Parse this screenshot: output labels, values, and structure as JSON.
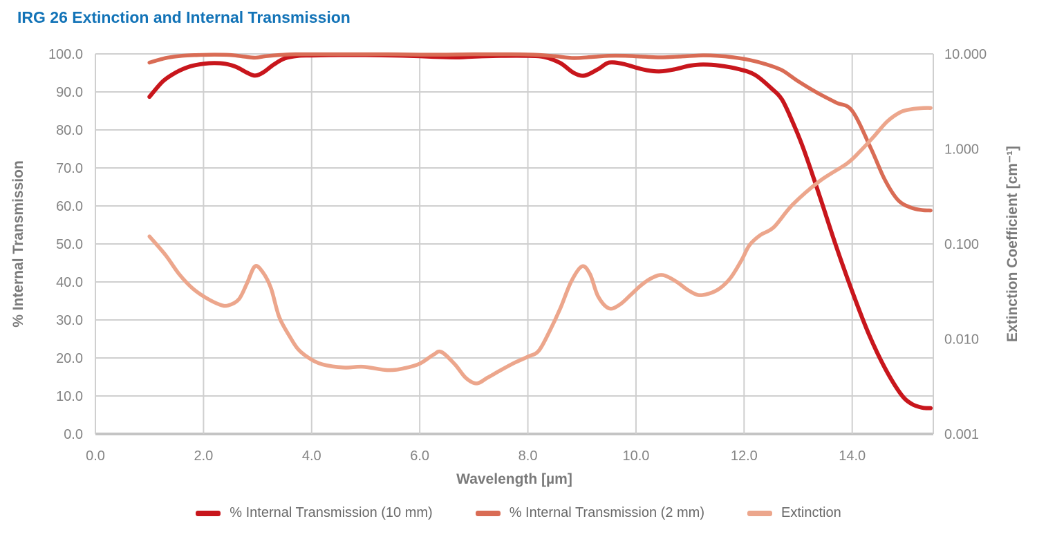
{
  "title": "IRG 26 Extinction and Internal Transmission",
  "colors": {
    "title": "#1273B7",
    "grid": "#CFCFCF",
    "axis_line": "#C4C4C4",
    "tick_text": "#848484",
    "axis_title_text": "#7A7A7A",
    "legend_text": "#696969"
  },
  "chart_data": {
    "type": "line",
    "title": "IRG 26 Extinction and Internal Transmission",
    "x_axis": {
      "label": "Wavelength [µm]",
      "min": 0,
      "max": 15.5,
      "ticks": [
        0,
        2,
        4,
        6,
        8,
        10,
        12,
        14
      ],
      "tick_labels": [
        "0.0",
        "2.0",
        "4.0",
        "6.0",
        "8.0",
        "10.0",
        "12.0",
        "14.0"
      ],
      "grid": true
    },
    "y_axis_left": {
      "label": "% Internal Transmission",
      "min": 0,
      "max": 100,
      "ticks": [
        0,
        10,
        20,
        30,
        40,
        50,
        60,
        70,
        80,
        90,
        100
      ],
      "tick_labels": [
        "0.0",
        "10.0",
        "20.0",
        "30.0",
        "40.0",
        "50.0",
        "60.0",
        "70.0",
        "80.0",
        "90.0",
        "100.0"
      ],
      "grid": true
    },
    "y_axis_right": {
      "label": "Extinction Coefficient [cm⁻¹]",
      "scale": "log",
      "min": 0.001,
      "max": 10,
      "ticks": [
        10,
        1,
        0.1,
        0.01,
        0.001
      ],
      "tick_labels": [
        "10.000",
        "1.000",
        "0.100",
        "0.010",
        "0.001"
      ]
    },
    "legend_position": "bottom",
    "series": [
      {
        "name": "% Internal Transmission (10 mm)",
        "axis": "left",
        "color": "#C8161C",
        "width": 6,
        "points": [
          [
            1.0,
            88.7
          ],
          [
            1.25,
            92.8
          ],
          [
            1.5,
            95.2
          ],
          [
            1.75,
            96.7
          ],
          [
            2.0,
            97.4
          ],
          [
            2.2,
            97.6
          ],
          [
            2.4,
            97.4
          ],
          [
            2.6,
            96.6
          ],
          [
            2.8,
            95.1
          ],
          [
            2.95,
            94.3
          ],
          [
            3.1,
            95.1
          ],
          [
            3.3,
            97.2
          ],
          [
            3.5,
            98.8
          ],
          [
            3.75,
            99.5
          ],
          [
            4.0,
            99.6
          ],
          [
            4.5,
            99.7
          ],
          [
            5.0,
            99.7
          ],
          [
            5.5,
            99.6
          ],
          [
            6.0,
            99.4
          ],
          [
            6.35,
            99.2
          ],
          [
            6.7,
            99.1
          ],
          [
            7.0,
            99.3
          ],
          [
            7.5,
            99.5
          ],
          [
            8.0,
            99.5
          ],
          [
            8.3,
            99.2
          ],
          [
            8.6,
            97.6
          ],
          [
            8.85,
            95.0
          ],
          [
            9.05,
            94.3
          ],
          [
            9.3,
            96.0
          ],
          [
            9.5,
            97.7
          ],
          [
            9.75,
            97.4
          ],
          [
            10.0,
            96.4
          ],
          [
            10.2,
            95.7
          ],
          [
            10.45,
            95.4
          ],
          [
            10.7,
            95.9
          ],
          [
            11.0,
            96.9
          ],
          [
            11.25,
            97.2
          ],
          [
            11.55,
            96.9
          ],
          [
            11.9,
            96.0
          ],
          [
            12.2,
            94.5
          ],
          [
            12.5,
            91.0
          ],
          [
            12.7,
            88.0
          ],
          [
            12.9,
            82.0
          ],
          [
            13.1,
            75.0
          ],
          [
            13.4,
            62.5
          ],
          [
            13.7,
            49.5
          ],
          [
            14.0,
            37.5
          ],
          [
            14.3,
            26.5
          ],
          [
            14.6,
            17.5
          ],
          [
            14.9,
            10.5
          ],
          [
            15.1,
            7.9
          ],
          [
            15.3,
            6.9
          ],
          [
            15.45,
            6.8
          ]
        ]
      },
      {
        "name": "% Internal Transmission (2 mm)",
        "axis": "left",
        "color": "#D96C55",
        "width": 5.5,
        "points": [
          [
            1.0,
            97.7
          ],
          [
            1.3,
            98.9
          ],
          [
            1.6,
            99.5
          ],
          [
            1.9,
            99.7
          ],
          [
            2.2,
            99.8
          ],
          [
            2.5,
            99.7
          ],
          [
            2.75,
            99.3
          ],
          [
            2.95,
            99.0
          ],
          [
            3.15,
            99.4
          ],
          [
            3.4,
            99.7
          ],
          [
            3.7,
            99.9
          ],
          [
            4.2,
            99.9
          ],
          [
            4.8,
            99.9
          ],
          [
            5.4,
            99.9
          ],
          [
            6.0,
            99.8
          ],
          [
            6.5,
            99.8
          ],
          [
            7.0,
            99.9
          ],
          [
            7.6,
            99.9
          ],
          [
            8.1,
            99.8
          ],
          [
            8.5,
            99.4
          ],
          [
            8.85,
            98.9
          ],
          [
            9.2,
            99.2
          ],
          [
            9.5,
            99.5
          ],
          [
            9.8,
            99.5
          ],
          [
            10.1,
            99.3
          ],
          [
            10.45,
            99.1
          ],
          [
            10.8,
            99.3
          ],
          [
            11.2,
            99.6
          ],
          [
            11.5,
            99.5
          ],
          [
            11.8,
            99.1
          ],
          [
            12.1,
            98.4
          ],
          [
            12.4,
            97.3
          ],
          [
            12.7,
            95.7
          ],
          [
            13.0,
            92.8
          ],
          [
            13.35,
            89.8
          ],
          [
            13.7,
            87.2
          ],
          [
            14.0,
            85.0
          ],
          [
            14.35,
            75.0
          ],
          [
            14.6,
            67.0
          ],
          [
            14.85,
            61.5
          ],
          [
            15.1,
            59.5
          ],
          [
            15.3,
            58.9
          ],
          [
            15.45,
            58.8
          ]
        ]
      },
      {
        "name": "Extinction",
        "axis": "right",
        "color": "#ECA68C",
        "width": 5.5,
        "points": [
          [
            1.0,
            0.12
          ],
          [
            1.3,
            0.076
          ],
          [
            1.55,
            0.048
          ],
          [
            1.8,
            0.034
          ],
          [
            2.05,
            0.027
          ],
          [
            2.3,
            0.023
          ],
          [
            2.45,
            0.0225
          ],
          [
            2.65,
            0.026
          ],
          [
            2.8,
            0.038
          ],
          [
            2.95,
            0.058
          ],
          [
            3.1,
            0.05
          ],
          [
            3.25,
            0.034
          ],
          [
            3.4,
            0.017
          ],
          [
            3.6,
            0.0105
          ],
          [
            3.75,
            0.0078
          ],
          [
            3.95,
            0.0063
          ],
          [
            4.2,
            0.0054
          ],
          [
            4.6,
            0.005
          ],
          [
            4.95,
            0.0051
          ],
          [
            5.4,
            0.0047
          ],
          [
            5.7,
            0.0049
          ],
          [
            6.0,
            0.0055
          ],
          [
            6.25,
            0.0068
          ],
          [
            6.4,
            0.0073
          ],
          [
            6.65,
            0.0054
          ],
          [
            6.85,
            0.0039
          ],
          [
            7.05,
            0.0034
          ],
          [
            7.25,
            0.0039
          ],
          [
            7.5,
            0.0047
          ],
          [
            7.75,
            0.0056
          ],
          [
            8.0,
            0.0065
          ],
          [
            8.2,
            0.0075
          ],
          [
            8.4,
            0.012
          ],
          [
            8.6,
            0.021
          ],
          [
            8.8,
            0.04
          ],
          [
            9.0,
            0.058
          ],
          [
            9.15,
            0.048
          ],
          [
            9.3,
            0.028
          ],
          [
            9.5,
            0.021
          ],
          [
            9.7,
            0.023
          ],
          [
            9.9,
            0.029
          ],
          [
            10.1,
            0.037
          ],
          [
            10.3,
            0.044
          ],
          [
            10.5,
            0.047
          ],
          [
            10.75,
            0.04
          ],
          [
            10.95,
            0.033
          ],
          [
            11.15,
            0.029
          ],
          [
            11.35,
            0.03
          ],
          [
            11.55,
            0.034
          ],
          [
            11.75,
            0.044
          ],
          [
            11.95,
            0.067
          ],
          [
            12.1,
            0.097
          ],
          [
            12.3,
            0.124
          ],
          [
            12.55,
            0.15
          ],
          [
            12.9,
            0.26
          ],
          [
            13.4,
            0.46
          ],
          [
            13.9,
            0.7
          ],
          [
            14.15,
            0.95
          ],
          [
            14.4,
            1.35
          ],
          [
            14.65,
            1.95
          ],
          [
            14.9,
            2.45
          ],
          [
            15.1,
            2.62
          ],
          [
            15.3,
            2.69
          ],
          [
            15.45,
            2.7
          ]
        ]
      }
    ]
  }
}
